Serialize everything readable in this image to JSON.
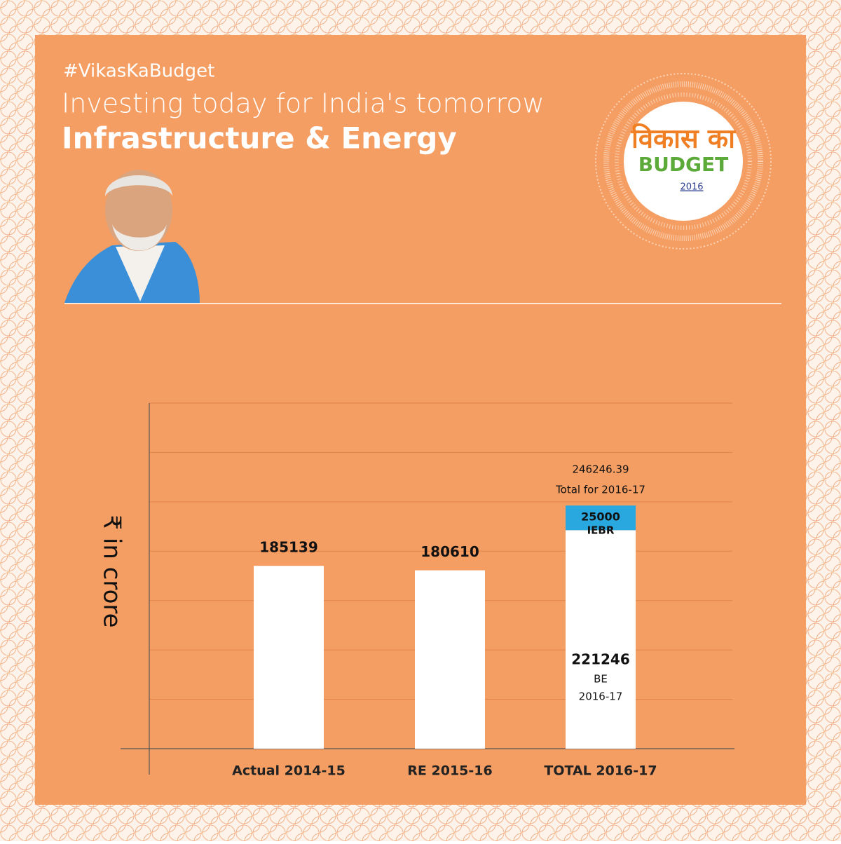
{
  "header": {
    "hashtag": "#VikasKaBudget",
    "title": "Investing today for India's tomorrow",
    "subtitle": "Infrastructure & Energy"
  },
  "logo": {
    "hindi": "विकास का",
    "word": "BUDGET",
    "year": "2016"
  },
  "chart_data": {
    "type": "bar",
    "stacked": true,
    "y_label": "₹ in crore",
    "categories": [
      "Actual 2014-15",
      "RE 2015-16",
      "TOTAL 2016-17"
    ],
    "series": [
      {
        "color": "#ffffff",
        "values": [
          185139,
          180610,
          221246
        ],
        "labels": [
          null,
          null,
          "BE"
        ],
        "sublabels": [
          null,
          null,
          "2016-17"
        ]
      },
      {
        "color": "#29a8e0",
        "values": [
          null,
          null,
          25000
        ],
        "labels": [
          null,
          null,
          "IEBR"
        ]
      }
    ],
    "total": 246246.39,
    "total_caption": "Total for 2016-17",
    "ylim": [
      0,
      350000
    ],
    "yticks": [
      0,
      50000,
      100000,
      150000,
      200000,
      250000,
      300000,
      350000
    ],
    "grid": true
  }
}
